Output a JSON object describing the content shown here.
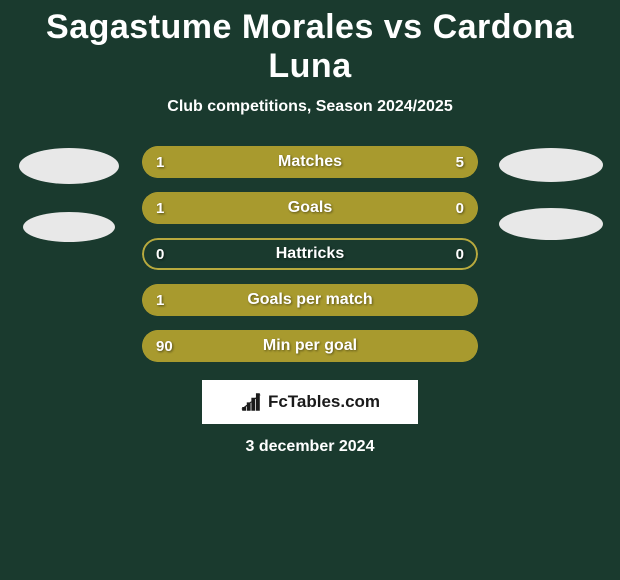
{
  "title": "Sagastume Morales vs Cardona Luna",
  "subtitle": "Club competitions, Season 2024/2025",
  "date": "3 december 2024",
  "logo_text": "FcTables.com",
  "colors": {
    "background": "#1a3a2e",
    "bar_fill": "#a89a2e",
    "bar_border": "#b8aa3e",
    "bar_track": "#1a3a2e",
    "avatar": "#e8e8e8",
    "logo_bg": "#ffffff",
    "logo_text": "#1a1a1a",
    "text": "#ffffff"
  },
  "stats": [
    {
      "label": "Matches",
      "left_value": "1",
      "right_value": "5",
      "left_pct": 16.67,
      "right_pct": 83.33,
      "left_filled": true,
      "right_filled": true,
      "full_fill": false
    },
    {
      "label": "Goals",
      "left_value": "1",
      "right_value": "0",
      "left_pct": 80,
      "right_pct": 20,
      "left_filled": true,
      "right_filled": true,
      "full_fill": false
    },
    {
      "label": "Hattricks",
      "left_value": "0",
      "right_value": "0",
      "left_pct": 0,
      "right_pct": 0,
      "left_filled": false,
      "right_filled": false,
      "full_fill": false
    },
    {
      "label": "Goals per match",
      "left_value": "1",
      "right_value": "",
      "left_pct": 100,
      "right_pct": 0,
      "left_filled": true,
      "right_filled": false,
      "full_fill": true
    },
    {
      "label": "Min per goal",
      "left_value": "90",
      "right_value": "",
      "left_pct": 100,
      "right_pct": 0,
      "left_filled": true,
      "right_filled": false,
      "full_fill": true
    }
  ]
}
